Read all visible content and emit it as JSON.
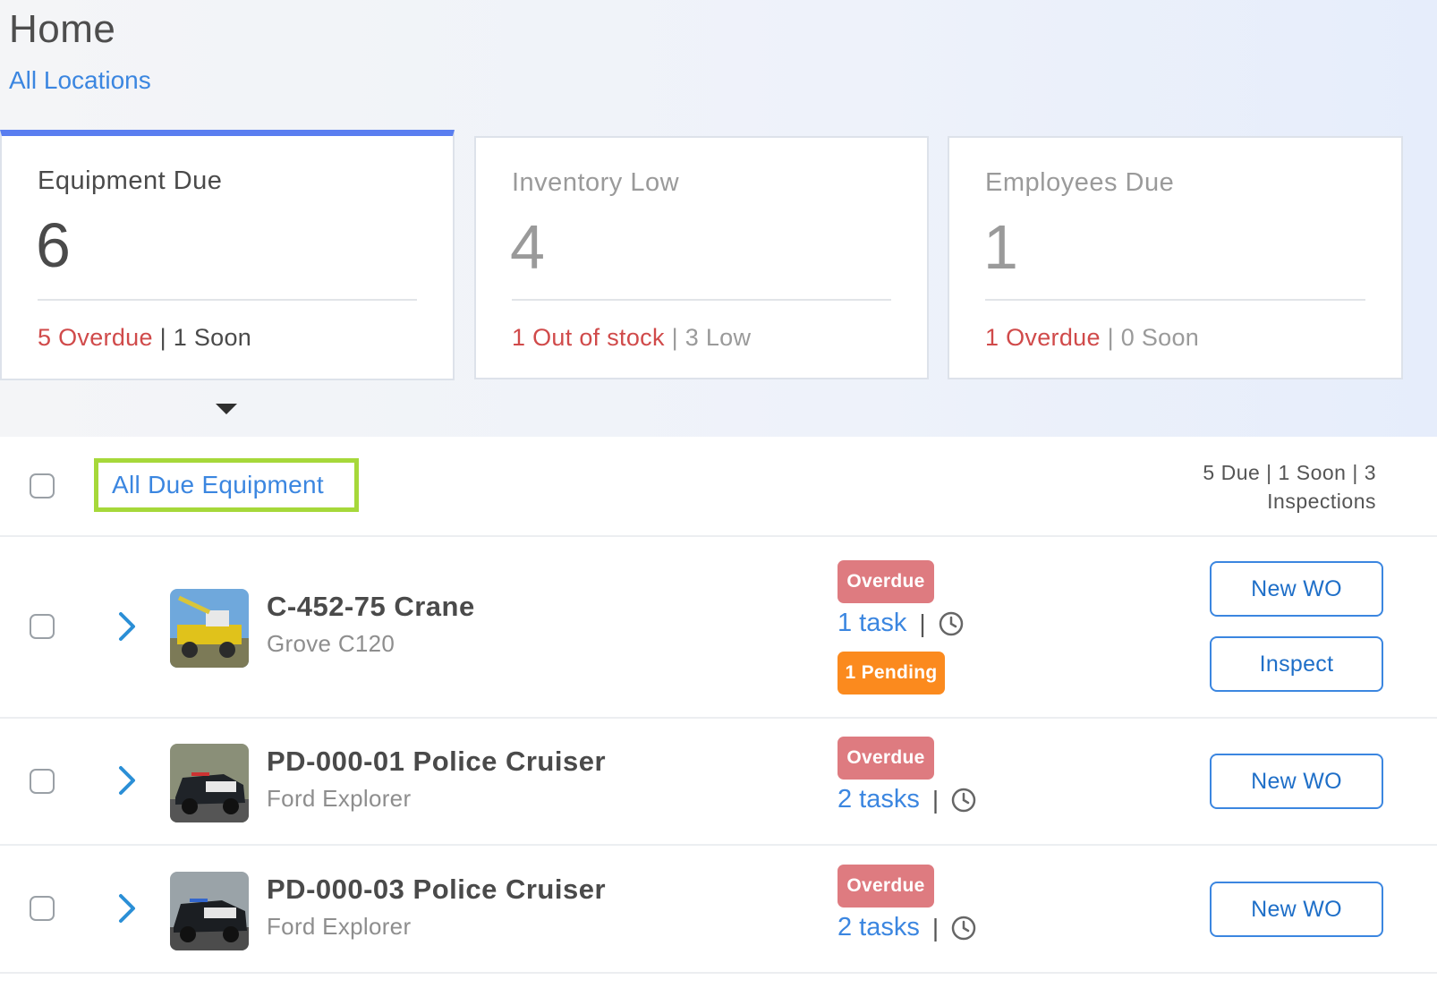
{
  "page": {
    "title": "Home",
    "location_link": "All Locations"
  },
  "cards": [
    {
      "label": "Equipment Due",
      "count": "6",
      "primary": "5 Overdue",
      "separator": "|",
      "secondary": "1 Soon",
      "active": true
    },
    {
      "label": "Inventory Low",
      "count": "4",
      "primary": "1 Out of stock",
      "separator": "|",
      "secondary": "3 Low",
      "active": false
    },
    {
      "label": "Employees Due",
      "count": "1",
      "primary": "1 Overdue",
      "separator": "|",
      "secondary": "0 Soon",
      "active": false
    }
  ],
  "list": {
    "header_link": "All Due Equipment",
    "summary_line1": "5 Due | 1 Soon | 3",
    "summary_line2": "Inspections",
    "rows": [
      {
        "name": "C-452-75 Crane",
        "model": "Grove C120",
        "status": "Overdue",
        "tasks": "1 task",
        "separator": "|",
        "pending": "1 Pending",
        "buttons": [
          "New WO",
          "Inspect"
        ]
      },
      {
        "name": "PD-000-01 Police Cruiser",
        "model": "Ford Explorer",
        "status": "Overdue",
        "tasks": "2 tasks",
        "separator": "|",
        "buttons": [
          "New WO"
        ]
      },
      {
        "name": "PD-000-03 Police Cruiser",
        "model": "Ford Explorer",
        "status": "Overdue",
        "tasks": "2 tasks",
        "separator": "|",
        "buttons": [
          "New WO"
        ]
      }
    ]
  },
  "icons": {
    "row_expand": "chevron-right-icon",
    "clock": "clock-icon",
    "card_toggle": "caret-down-icon"
  },
  "colors": {
    "accent": "#3b86e0",
    "active_tab": "#5a7ef0",
    "overdue_red": "#d04a4a",
    "overdue_badge": "#de7b80",
    "pending_badge": "#fb8a1e",
    "highlight_box": "#a6d83a"
  }
}
